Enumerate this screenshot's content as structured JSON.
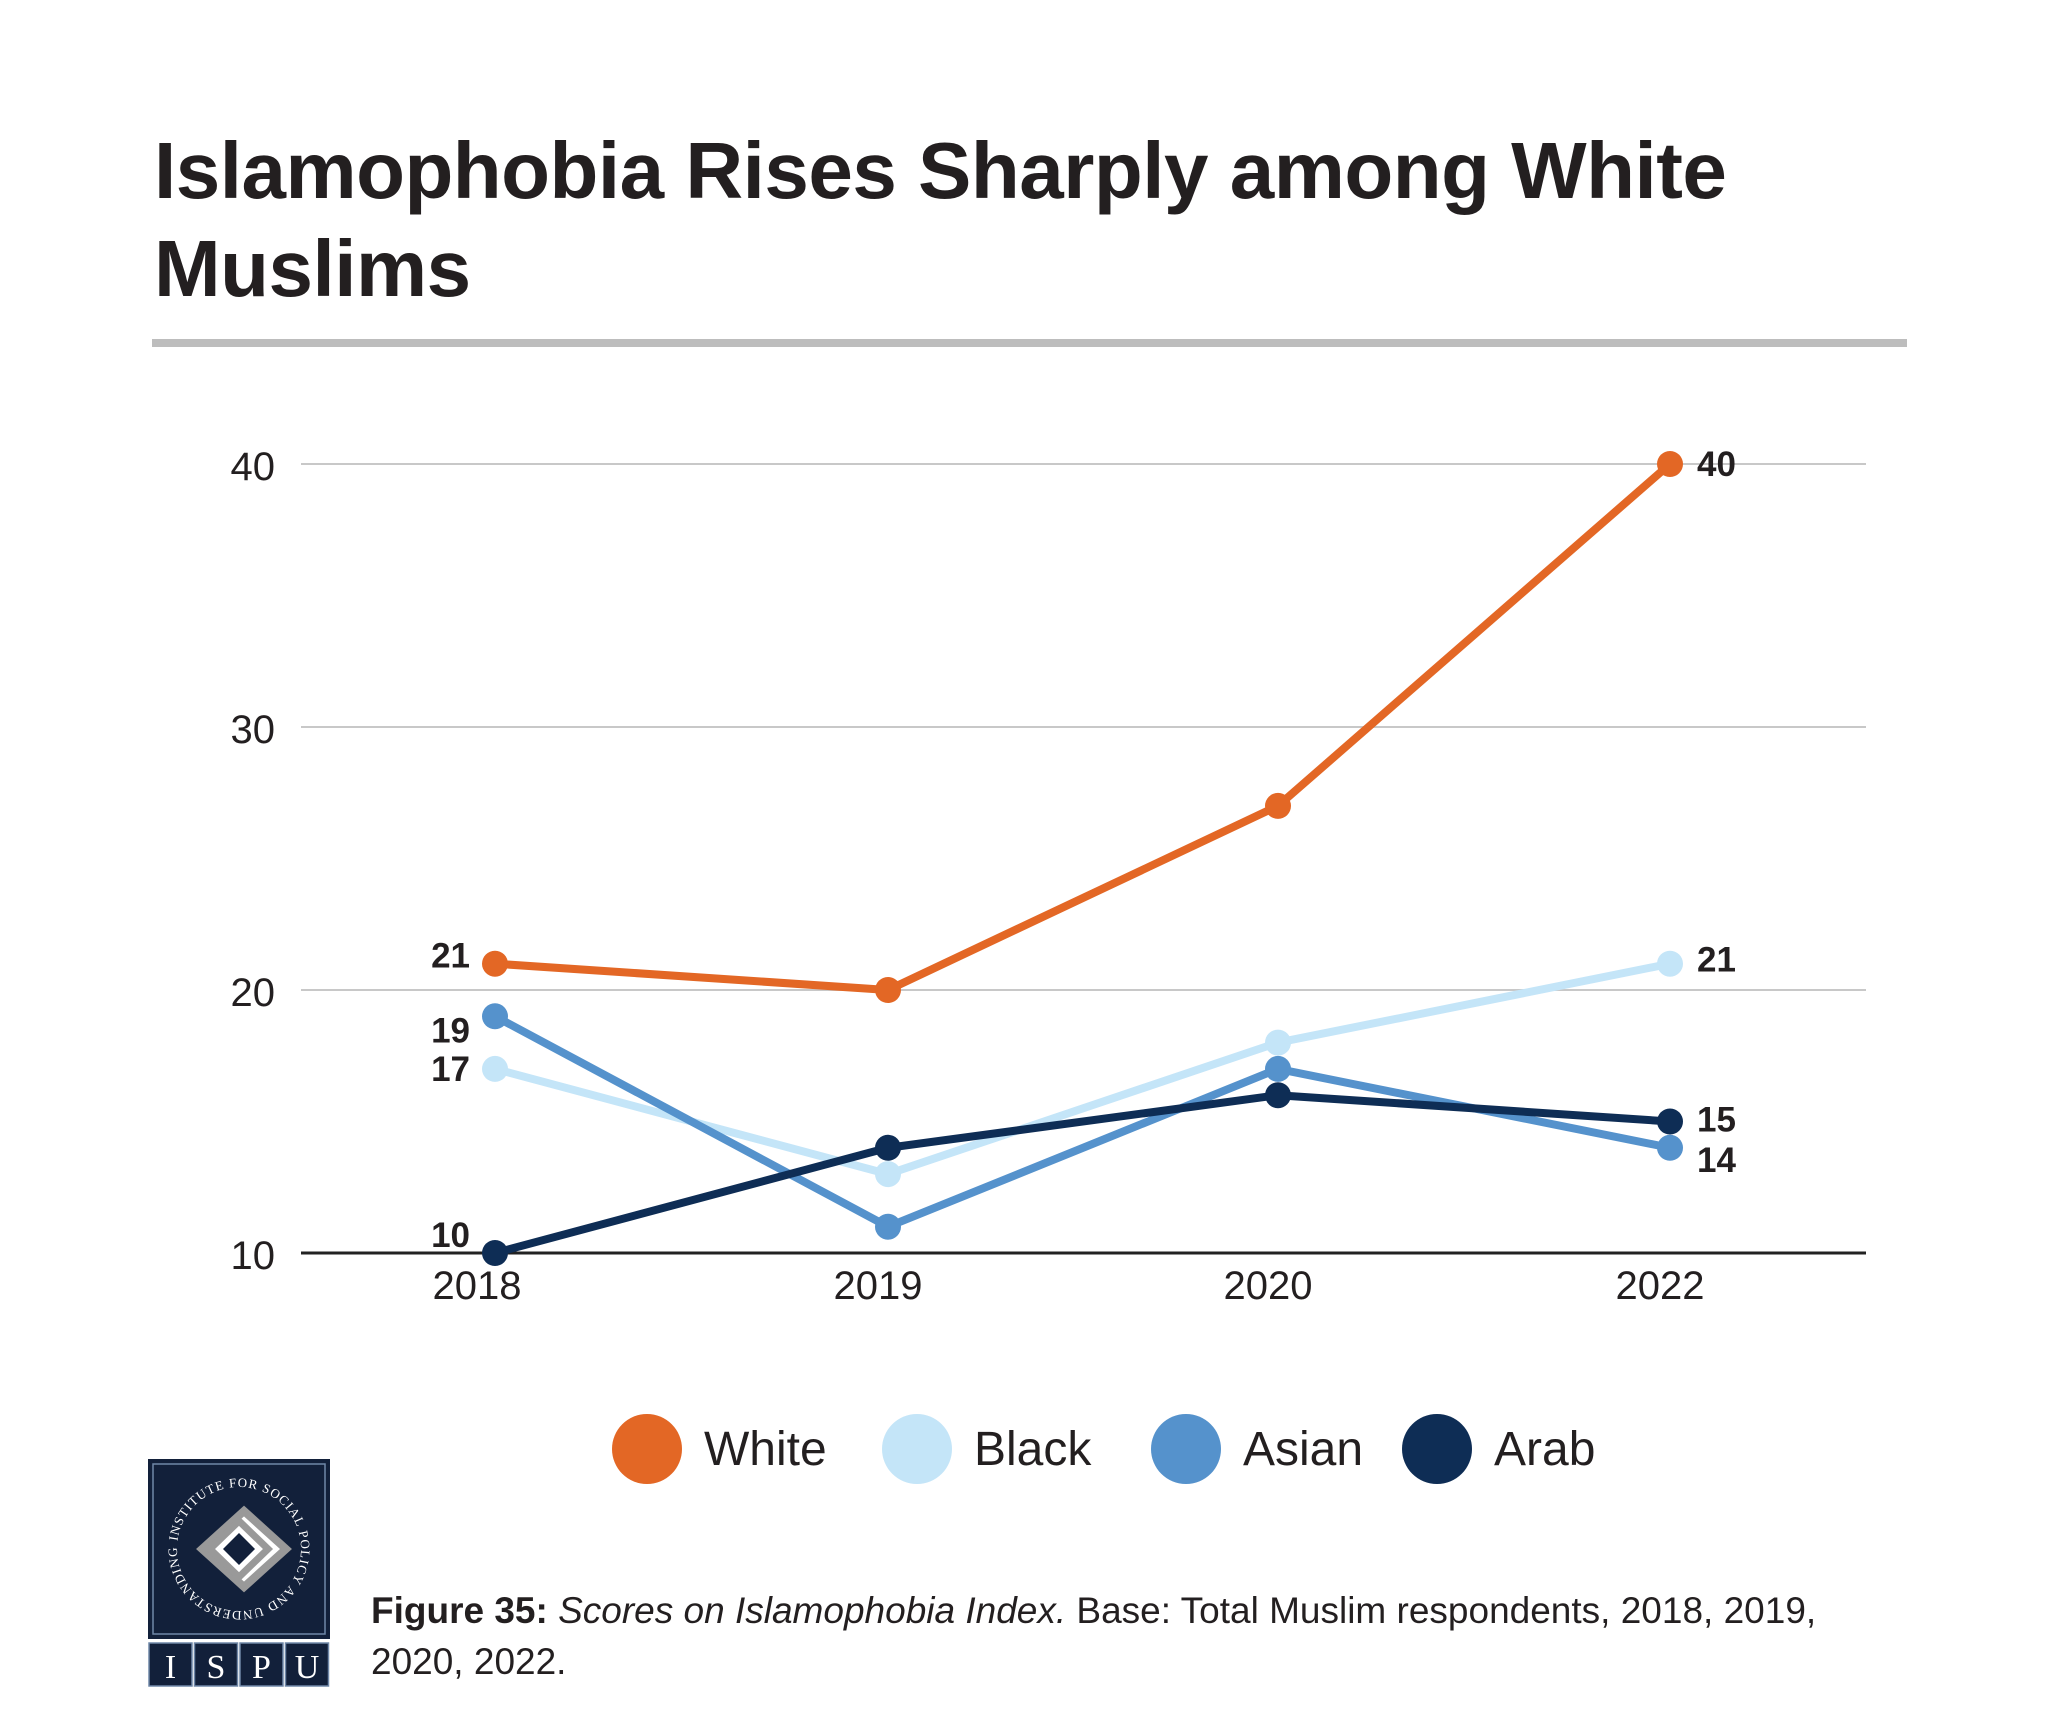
{
  "chart_data": {
    "type": "line",
    "title": "Islamophobia Rises Sharply among White Muslims",
    "xlabel": "",
    "ylabel": "",
    "x": [
      "2018",
      "2019",
      "2020",
      "2022"
    ],
    "ylim": [
      10,
      40
    ],
    "yticks": [
      10,
      20,
      30,
      40
    ],
    "grid": true,
    "legend_position": "bottom",
    "series": [
      {
        "name": "White",
        "color": "#e36725",
        "values": [
          21,
          20,
          27,
          40
        ],
        "labels": [
          "21",
          null,
          null,
          "40"
        ]
      },
      {
        "name": "Black",
        "color": "#c4e5f8",
        "values": [
          17,
          13,
          18,
          21
        ],
        "labels": [
          "17",
          null,
          null,
          "21"
        ]
      },
      {
        "name": "Asian",
        "color": "#5592cc",
        "values": [
          19,
          11,
          17,
          14
        ],
        "labels": [
          "19",
          null,
          null,
          "14"
        ]
      },
      {
        "name": "Arab",
        "color": "#0e2d55",
        "values": [
          10,
          14,
          16,
          15
        ],
        "labels": [
          "10",
          null,
          null,
          "15"
        ]
      }
    ]
  },
  "caption": {
    "figure_label": "Figure 35:",
    "italic_text": "Scores on Islamophobia Index.",
    "rest_text": " Base: Total Muslim respondents, 2018, 2019, 2020, 2022."
  },
  "logo": {
    "ring_text": "INSTITUTE FOR SOCIAL POLICY AND UNDERSTANDING",
    "letters": [
      "I",
      "S",
      "P",
      "U"
    ]
  }
}
